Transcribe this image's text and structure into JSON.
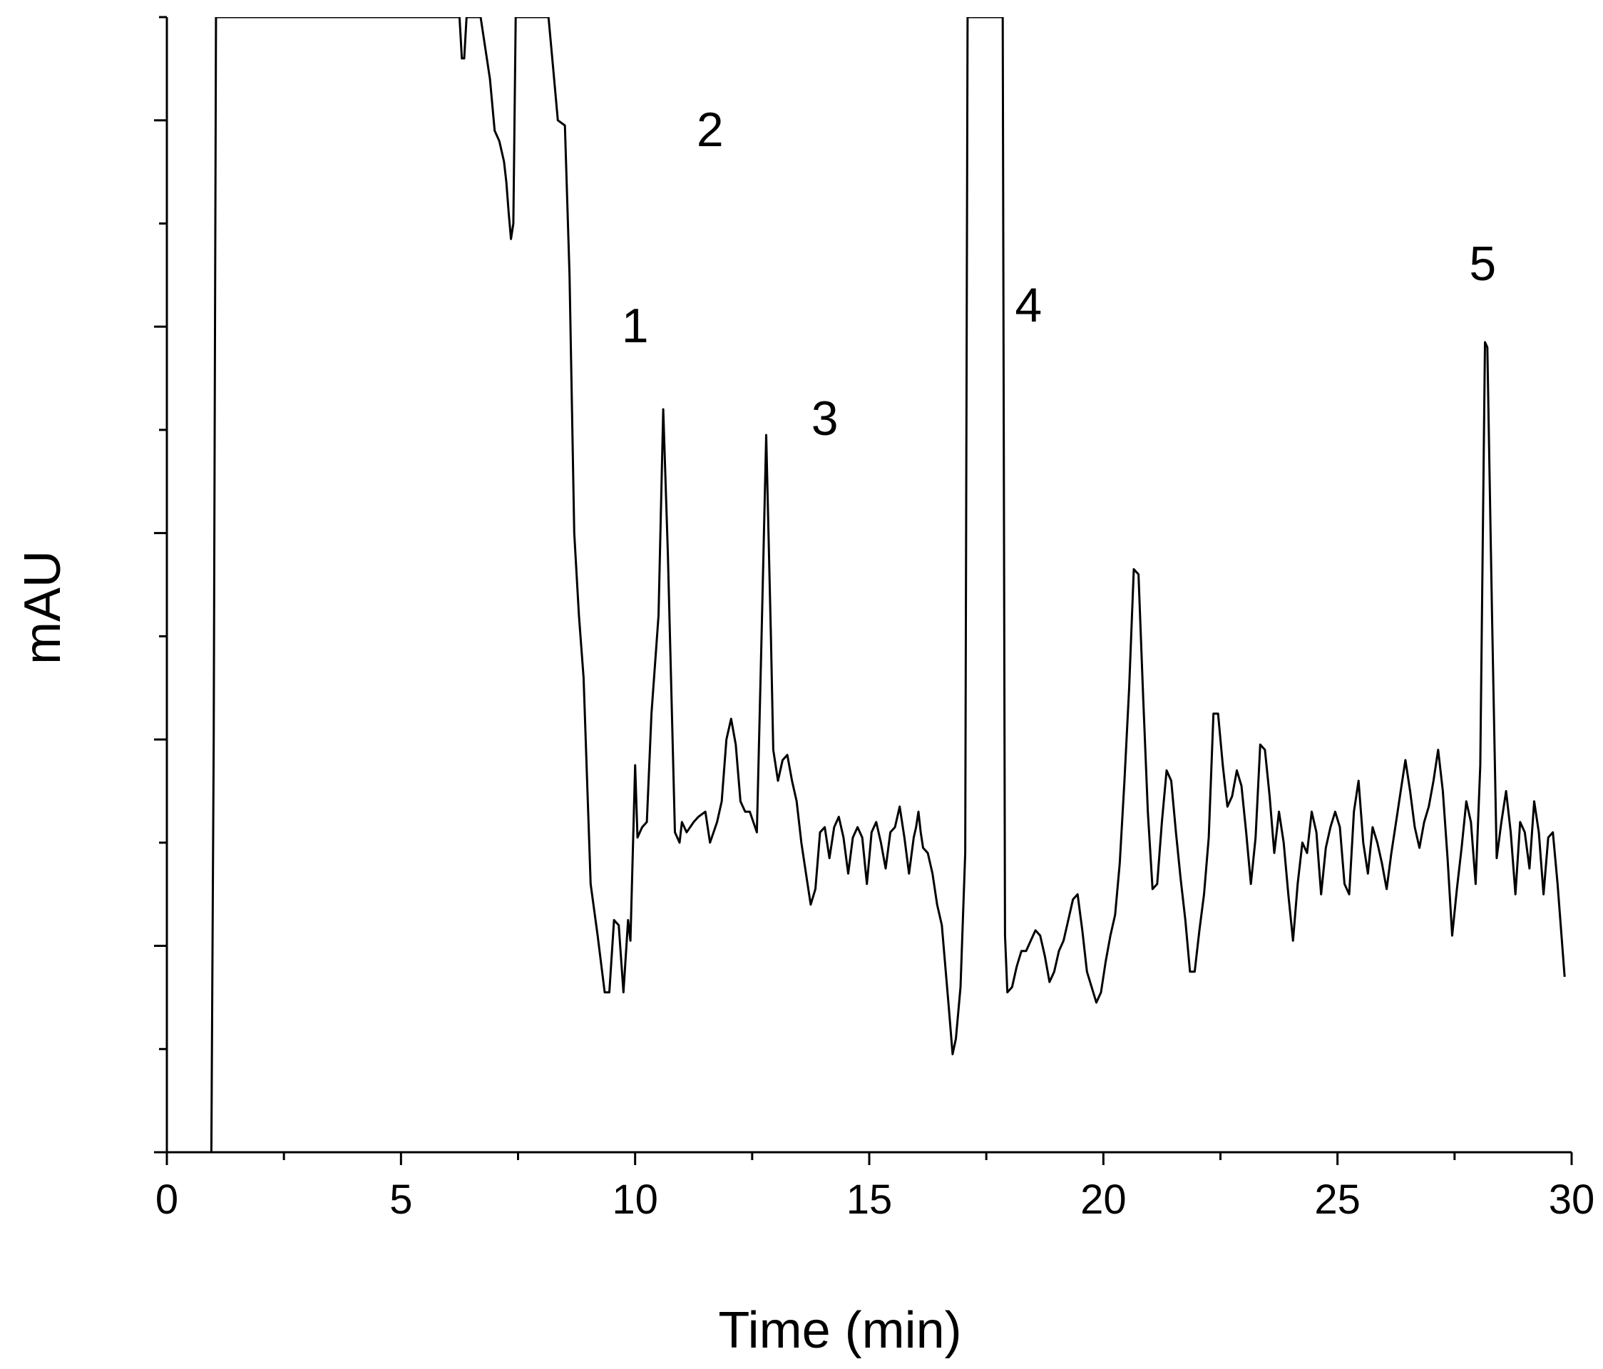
{
  "chart_data": {
    "type": "line",
    "title": "",
    "xlabel": "Time (min)",
    "ylabel": "mAU",
    "xlim": [
      0,
      30
    ],
    "ylim": [
      0,
      11
    ],
    "x_ticks": [
      "0",
      "5",
      "10",
      "15",
      "20",
      "25",
      "30"
    ],
    "y_tick_labels_shown": false,
    "grid": false,
    "legend": "none",
    "line_color": "#000000",
    "series": [
      {
        "points": [
          [
            0.95,
            0
          ],
          [
            1.0,
            4
          ],
          [
            1.05,
            11
          ],
          [
            6.25,
            11
          ],
          [
            6.3,
            10.6
          ],
          [
            6.35,
            10.6
          ],
          [
            6.4,
            11
          ],
          [
            6.7,
            11
          ],
          [
            6.9,
            10.4
          ],
          [
            7.0,
            9.9
          ],
          [
            7.1,
            9.8
          ],
          [
            7.2,
            9.6
          ],
          [
            7.25,
            9.4
          ],
          [
            7.3,
            9.1
          ],
          [
            7.35,
            8.85
          ],
          [
            7.4,
            9.0
          ],
          [
            7.45,
            11
          ],
          [
            8.15,
            11
          ],
          [
            8.25,
            10.5
          ],
          [
            8.35,
            10.0
          ],
          [
            8.5,
            9.95
          ],
          [
            8.6,
            8.5
          ],
          [
            8.7,
            6.0
          ],
          [
            8.8,
            5.2
          ],
          [
            8.9,
            4.6
          ],
          [
            9.05,
            2.6
          ],
          [
            9.2,
            2.1
          ],
          [
            9.35,
            1.55
          ],
          [
            9.45,
            1.55
          ],
          [
            9.55,
            2.25
          ],
          [
            9.65,
            2.2
          ],
          [
            9.75,
            1.55
          ],
          [
            9.85,
            2.25
          ],
          [
            9.9,
            2.05
          ],
          [
            10.0,
            3.75
          ],
          [
            10.05,
            3.05
          ],
          [
            10.15,
            3.15
          ],
          [
            10.25,
            3.2
          ],
          [
            10.35,
            4.25
          ],
          [
            10.5,
            5.2
          ],
          [
            10.6,
            7.2
          ],
          [
            10.7,
            5.8
          ],
          [
            10.85,
            3.1
          ],
          [
            10.95,
            3.0
          ],
          [
            11.0,
            3.2
          ],
          [
            11.1,
            3.1
          ],
          [
            11.25,
            3.2
          ],
          [
            11.35,
            3.25
          ],
          [
            11.5,
            3.3
          ],
          [
            11.6,
            3.0
          ],
          [
            11.75,
            3.2
          ],
          [
            11.85,
            3.4
          ],
          [
            11.95,
            4.0
          ],
          [
            12.05,
            4.2
          ],
          [
            12.15,
            3.95
          ],
          [
            12.25,
            3.4
          ],
          [
            12.35,
            3.3
          ],
          [
            12.45,
            3.3
          ],
          [
            12.6,
            3.1
          ],
          [
            12.7,
            5.0
          ],
          [
            12.8,
            6.95
          ],
          [
            12.9,
            5.0
          ],
          [
            12.95,
            3.9
          ],
          [
            13.05,
            3.6
          ],
          [
            13.15,
            3.8
          ],
          [
            13.25,
            3.85
          ],
          [
            13.35,
            3.6
          ],
          [
            13.45,
            3.4
          ],
          [
            13.55,
            3.0
          ],
          [
            13.65,
            2.7
          ],
          [
            13.75,
            2.4
          ],
          [
            13.85,
            2.55
          ],
          [
            13.95,
            3.1
          ],
          [
            14.05,
            3.15
          ],
          [
            14.15,
            2.85
          ],
          [
            14.25,
            3.15
          ],
          [
            14.35,
            3.25
          ],
          [
            14.45,
            3.05
          ],
          [
            14.55,
            2.7
          ],
          [
            14.65,
            3.05
          ],
          [
            14.75,
            3.15
          ],
          [
            14.85,
            3.05
          ],
          [
            14.95,
            2.6
          ],
          [
            15.05,
            3.1
          ],
          [
            15.15,
            3.2
          ],
          [
            15.25,
            3.0
          ],
          [
            15.35,
            2.75
          ],
          [
            15.45,
            3.1
          ],
          [
            15.55,
            3.15
          ],
          [
            15.65,
            3.35
          ],
          [
            15.75,
            3.05
          ],
          [
            15.85,
            2.7
          ],
          [
            15.95,
            3.05
          ],
          [
            16.0,
            3.15
          ],
          [
            16.05,
            3.3
          ],
          [
            16.1,
            3.1
          ],
          [
            16.15,
            2.95
          ],
          [
            16.25,
            2.9
          ],
          [
            16.35,
            2.7
          ],
          [
            16.45,
            2.4
          ],
          [
            16.55,
            2.2
          ],
          [
            16.7,
            1.4
          ],
          [
            16.78,
            0.95
          ],
          [
            16.85,
            1.1
          ],
          [
            16.95,
            1.6
          ],
          [
            17.05,
            2.9
          ],
          [
            17.1,
            11
          ],
          [
            17.85,
            11
          ],
          [
            17.9,
            2.1
          ],
          [
            17.95,
            1.55
          ],
          [
            18.05,
            1.6
          ],
          [
            18.15,
            1.8
          ],
          [
            18.25,
            1.95
          ],
          [
            18.35,
            1.95
          ],
          [
            18.45,
            2.05
          ],
          [
            18.55,
            2.15
          ],
          [
            18.65,
            2.1
          ],
          [
            18.75,
            1.9
          ],
          [
            18.85,
            1.65
          ],
          [
            18.95,
            1.75
          ],
          [
            19.05,
            1.95
          ],
          [
            19.15,
            2.05
          ],
          [
            19.25,
            2.25
          ],
          [
            19.35,
            2.45
          ],
          [
            19.45,
            2.5
          ],
          [
            19.55,
            2.15
          ],
          [
            19.65,
            1.75
          ],
          [
            19.75,
            1.6
          ],
          [
            19.85,
            1.45
          ],
          [
            19.95,
            1.55
          ],
          [
            20.05,
            1.85
          ],
          [
            20.15,
            2.1
          ],
          [
            20.25,
            2.3
          ],
          [
            20.35,
            2.8
          ],
          [
            20.45,
            3.6
          ],
          [
            20.55,
            4.5
          ],
          [
            20.65,
            5.65
          ],
          [
            20.75,
            5.6
          ],
          [
            20.85,
            4.4
          ],
          [
            20.95,
            3.3
          ],
          [
            21.05,
            2.55
          ],
          [
            21.15,
            2.6
          ],
          [
            21.25,
            3.2
          ],
          [
            21.35,
            3.7
          ],
          [
            21.45,
            3.6
          ],
          [
            21.55,
            3.1
          ],
          [
            21.65,
            2.65
          ],
          [
            21.75,
            2.25
          ],
          [
            21.85,
            1.75
          ],
          [
            21.95,
            1.75
          ],
          [
            22.05,
            2.15
          ],
          [
            22.15,
            2.5
          ],
          [
            22.25,
            3.05
          ],
          [
            22.35,
            4.25
          ],
          [
            22.45,
            4.25
          ],
          [
            22.55,
            3.75
          ],
          [
            22.65,
            3.35
          ],
          [
            22.75,
            3.45
          ],
          [
            22.85,
            3.7
          ],
          [
            22.95,
            3.55
          ],
          [
            23.05,
            3.1
          ],
          [
            23.15,
            2.6
          ],
          [
            23.25,
            3.05
          ],
          [
            23.35,
            3.95
          ],
          [
            23.45,
            3.9
          ],
          [
            23.55,
            3.45
          ],
          [
            23.65,
            2.9
          ],
          [
            23.75,
            3.3
          ],
          [
            23.85,
            3.0
          ],
          [
            23.95,
            2.5
          ],
          [
            24.05,
            2.05
          ],
          [
            24.15,
            2.6
          ],
          [
            24.25,
            3.0
          ],
          [
            24.35,
            2.9
          ],
          [
            24.45,
            3.3
          ],
          [
            24.55,
            3.1
          ],
          [
            24.65,
            2.5
          ],
          [
            24.75,
            2.95
          ],
          [
            24.85,
            3.15
          ],
          [
            24.95,
            3.3
          ],
          [
            25.05,
            3.15
          ],
          [
            25.15,
            2.6
          ],
          [
            25.25,
            2.5
          ],
          [
            25.35,
            3.3
          ],
          [
            25.45,
            3.6
          ],
          [
            25.55,
            3.0
          ],
          [
            25.65,
            2.7
          ],
          [
            25.75,
            3.15
          ],
          [
            25.85,
            3.0
          ],
          [
            25.95,
            2.8
          ],
          [
            26.05,
            2.55
          ],
          [
            26.15,
            2.9
          ],
          [
            26.25,
            3.2
          ],
          [
            26.35,
            3.5
          ],
          [
            26.45,
            3.8
          ],
          [
            26.55,
            3.5
          ],
          [
            26.65,
            3.15
          ],
          [
            26.75,
            2.95
          ],
          [
            26.85,
            3.2
          ],
          [
            26.95,
            3.35
          ],
          [
            27.05,
            3.6
          ],
          [
            27.15,
            3.9
          ],
          [
            27.25,
            3.5
          ],
          [
            27.35,
            2.85
          ],
          [
            27.45,
            2.1
          ],
          [
            27.55,
            2.55
          ],
          [
            27.65,
            2.95
          ],
          [
            27.75,
            3.4
          ],
          [
            27.85,
            3.2
          ],
          [
            27.95,
            2.6
          ],
          [
            28.05,
            3.75
          ],
          [
            28.15,
            7.85
          ],
          [
            28.2,
            7.8
          ],
          [
            28.3,
            5.2
          ],
          [
            28.4,
            2.85
          ],
          [
            28.5,
            3.2
          ],
          [
            28.6,
            3.5
          ],
          [
            28.7,
            3.1
          ],
          [
            28.8,
            2.5
          ],
          [
            28.9,
            3.2
          ],
          [
            29.0,
            3.1
          ],
          [
            29.1,
            2.75
          ],
          [
            29.2,
            3.4
          ],
          [
            29.3,
            3.1
          ],
          [
            29.4,
            2.5
          ],
          [
            29.5,
            3.05
          ],
          [
            29.6,
            3.1
          ],
          [
            29.7,
            2.6
          ],
          [
            29.85,
            1.7
          ]
        ]
      }
    ],
    "peak_labels": [
      {
        "label": "1",
        "x": 10.0,
        "y": 7.85
      },
      {
        "label": "2",
        "x": 11.6,
        "y": 9.75
      },
      {
        "label": "3",
        "x": 14.05,
        "y": 6.95
      },
      {
        "label": "4",
        "x": 18.4,
        "y": 8.05
      },
      {
        "label": "5",
        "x": 28.1,
        "y": 8.45
      }
    ]
  }
}
